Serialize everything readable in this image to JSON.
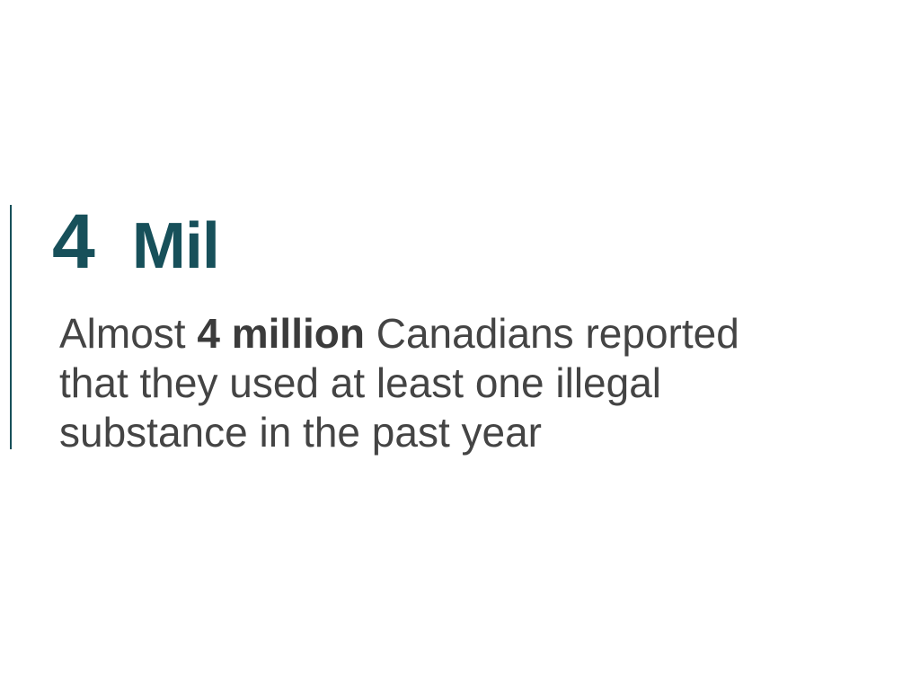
{
  "stat": {
    "number": "4",
    "unit": "Mil"
  },
  "description": {
    "prefix": "Almost ",
    "emphasis": "4 million",
    "line1_suffix": " Canadians reported",
    "line2": "that they used at least one illegal",
    "line3": "substance in the past year"
  },
  "colors": {
    "accent": "#17505a",
    "body_text": "#444444",
    "background": "#ffffff"
  }
}
